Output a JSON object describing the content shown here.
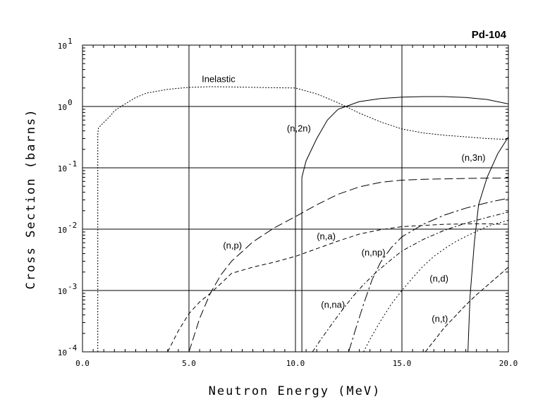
{
  "chart_data": {
    "type": "line",
    "title": "Pd-104",
    "xlabel": "Neutron Energy (MeV)",
    "ylabel": "Cross Section (barns)",
    "xlim": [
      0,
      20
    ],
    "ylim": [
      0.0001,
      10
    ],
    "yscale": "log",
    "grid": true,
    "x_ticks": [
      {
        "value": 0,
        "label": "0.0"
      },
      {
        "value": 5,
        "label": "5.0"
      },
      {
        "value": 10,
        "label": "10.0"
      },
      {
        "value": 15,
        "label": "15.0"
      },
      {
        "value": 20,
        "label": "20.0"
      }
    ],
    "y_ticks": [
      {
        "value": 0.0001,
        "base": "10",
        "exp": "-4"
      },
      {
        "value": 0.001,
        "base": "10",
        "exp": "-3"
      },
      {
        "value": 0.01,
        "base": "10",
        "exp": "-2"
      },
      {
        "value": 0.1,
        "base": "10",
        "exp": "-1"
      },
      {
        "value": 1,
        "base": "10",
        "exp": "0"
      },
      {
        "value": 10,
        "base": "10",
        "exp": "1"
      }
    ],
    "series": [
      {
        "name": "Inelastic",
        "dash": "2,2",
        "label_at": [
          5.6,
          2.5
        ],
        "points": [
          [
            0.72,
            0.0001
          ],
          [
            0.72,
            0.35
          ],
          [
            0.75,
            0.45
          ],
          [
            1.0,
            0.55
          ],
          [
            1.3,
            0.7
          ],
          [
            1.5,
            0.85
          ],
          [
            2.0,
            1.1
          ],
          [
            2.5,
            1.4
          ],
          [
            3.0,
            1.65
          ],
          [
            4.0,
            1.9
          ],
          [
            5.0,
            2.05
          ],
          [
            6.0,
            2.1
          ],
          [
            7.0,
            2.08
          ],
          [
            8.0,
            2.05
          ],
          [
            9.0,
            2.02
          ],
          [
            10.0,
            2.0
          ],
          [
            11.0,
            1.6
          ],
          [
            12.0,
            1.15
          ],
          [
            13.0,
            0.78
          ],
          [
            14.0,
            0.56
          ],
          [
            15.0,
            0.43
          ],
          [
            16.0,
            0.37
          ],
          [
            17.0,
            0.34
          ],
          [
            18.0,
            0.32
          ],
          [
            19.0,
            0.3
          ],
          [
            20.0,
            0.29
          ]
        ]
      },
      {
        "name": "(n,2n)",
        "dash": "",
        "label_at": [
          9.6,
          0.39
        ],
        "points": [
          [
            10.3,
            0.0001
          ],
          [
            10.3,
            0.07
          ],
          [
            10.5,
            0.13
          ],
          [
            11.0,
            0.3
          ],
          [
            11.5,
            0.6
          ],
          [
            12.0,
            0.9
          ],
          [
            13.0,
            1.2
          ],
          [
            14.0,
            1.35
          ],
          [
            15.0,
            1.42
          ],
          [
            16.0,
            1.45
          ],
          [
            17.0,
            1.45
          ],
          [
            18.0,
            1.4
          ],
          [
            19.0,
            1.3
          ],
          [
            20.0,
            1.1
          ]
        ]
      },
      {
        "name": "(n,3n)",
        "dash": "",
        "label_at": [
          17.8,
          0.13
        ],
        "points": [
          [
            18.1,
            0.0001
          ],
          [
            18.2,
            0.0008
          ],
          [
            18.4,
            0.006
          ],
          [
            18.6,
            0.025
          ],
          [
            19.0,
            0.07
          ],
          [
            19.5,
            0.17
          ],
          [
            20.0,
            0.32
          ]
        ]
      },
      {
        "name": "(n,p)",
        "dash": "12,5",
        "label_at": [
          6.6,
          0.0048
        ],
        "points": [
          [
            5.0,
            0.0001
          ],
          [
            5.5,
            0.00035
          ],
          [
            6.0,
            0.0009
          ],
          [
            6.5,
            0.0018
          ],
          [
            7.0,
            0.003
          ],
          [
            8.0,
            0.0062
          ],
          [
            9.0,
            0.0105
          ],
          [
            10.0,
            0.016
          ],
          [
            11.0,
            0.025
          ],
          [
            12.0,
            0.037
          ],
          [
            13.0,
            0.049
          ],
          [
            14.0,
            0.058
          ],
          [
            15.0,
            0.063
          ],
          [
            16.0,
            0.065
          ],
          [
            17.0,
            0.066
          ],
          [
            18.0,
            0.067
          ],
          [
            19.0,
            0.068
          ],
          [
            20.0,
            0.068
          ]
        ]
      },
      {
        "name": "(n,a)",
        "dash": "6,4",
        "label_at": [
          11.0,
          0.0068
        ],
        "points": [
          [
            4.0,
            0.0001
          ],
          [
            4.5,
            0.00022
          ],
          [
            5.0,
            0.00042
          ],
          [
            5.5,
            0.00065
          ],
          [
            6.0,
            0.0009
          ],
          [
            6.5,
            0.0013
          ],
          [
            7.0,
            0.0019
          ],
          [
            8.0,
            0.0024
          ],
          [
            9.0,
            0.0029
          ],
          [
            10.0,
            0.0036
          ],
          [
            11.0,
            0.0048
          ],
          [
            12.0,
            0.0064
          ],
          [
            13.0,
            0.0083
          ],
          [
            14.0,
            0.0098
          ],
          [
            15.0,
            0.011
          ],
          [
            16.0,
            0.0115
          ],
          [
            17.0,
            0.012
          ],
          [
            18.0,
            0.0122
          ],
          [
            19.0,
            0.0122
          ],
          [
            20.0,
            0.012
          ]
        ]
      },
      {
        "name": "(n,np)",
        "dash": "14,4,3,4",
        "label_at": [
          13.1,
          0.0037
        ],
        "points": [
          [
            12.5,
            0.0001
          ],
          [
            12.8,
            0.00022
          ],
          [
            13.2,
            0.0006
          ],
          [
            13.6,
            0.0015
          ],
          [
            14.0,
            0.0029
          ],
          [
            14.5,
            0.005
          ],
          [
            15.0,
            0.0075
          ],
          [
            16.0,
            0.012
          ],
          [
            17.0,
            0.017
          ],
          [
            18.0,
            0.022
          ],
          [
            19.0,
            0.027
          ],
          [
            20.0,
            0.032
          ]
        ]
      },
      {
        "name": "(n,na)",
        "dash": "6,3,2,3",
        "label_at": [
          11.2,
          0.00052
        ],
        "points": [
          [
            10.8,
            0.0001
          ],
          [
            11.2,
            0.00016
          ],
          [
            11.7,
            0.00028
          ],
          [
            12.2,
            0.00048
          ],
          [
            12.7,
            0.0008
          ],
          [
            13.2,
            0.00125
          ],
          [
            13.8,
            0.002
          ],
          [
            14.5,
            0.0032
          ],
          [
            15.0,
            0.0044
          ],
          [
            16.0,
            0.0068
          ],
          [
            17.0,
            0.0096
          ],
          [
            18.0,
            0.0125
          ],
          [
            19.0,
            0.0155
          ],
          [
            20.0,
            0.019
          ]
        ]
      },
      {
        "name": "(n,d)",
        "dash": "2,3",
        "label_at": [
          16.3,
          0.0014
        ],
        "points": [
          [
            13.2,
            0.0001
          ],
          [
            13.5,
            0.00016
          ],
          [
            14.0,
            0.00032
          ],
          [
            14.5,
            0.0006
          ],
          [
            15.0,
            0.001
          ],
          [
            15.5,
            0.0016
          ],
          [
            16.0,
            0.0025
          ],
          [
            16.5,
            0.0036
          ],
          [
            17.0,
            0.0048
          ],
          [
            17.5,
            0.0062
          ],
          [
            18.0,
            0.0076
          ],
          [
            18.5,
            0.0092
          ],
          [
            19.0,
            0.011
          ],
          [
            19.5,
            0.0125
          ],
          [
            20.0,
            0.014
          ]
        ]
      },
      {
        "name": "(n,t)",
        "dash": "6,3",
        "label_at": [
          16.4,
          0.00031
        ],
        "points": [
          [
            16.1,
            0.0001
          ],
          [
            16.5,
            0.00015
          ],
          [
            17.0,
            0.00025
          ],
          [
            17.5,
            0.00038
          ],
          [
            18.0,
            0.00058
          ],
          [
            18.5,
            0.00085
          ],
          [
            19.0,
            0.0012
          ],
          [
            19.5,
            0.0017
          ],
          [
            20.0,
            0.0024
          ]
        ]
      }
    ]
  }
}
